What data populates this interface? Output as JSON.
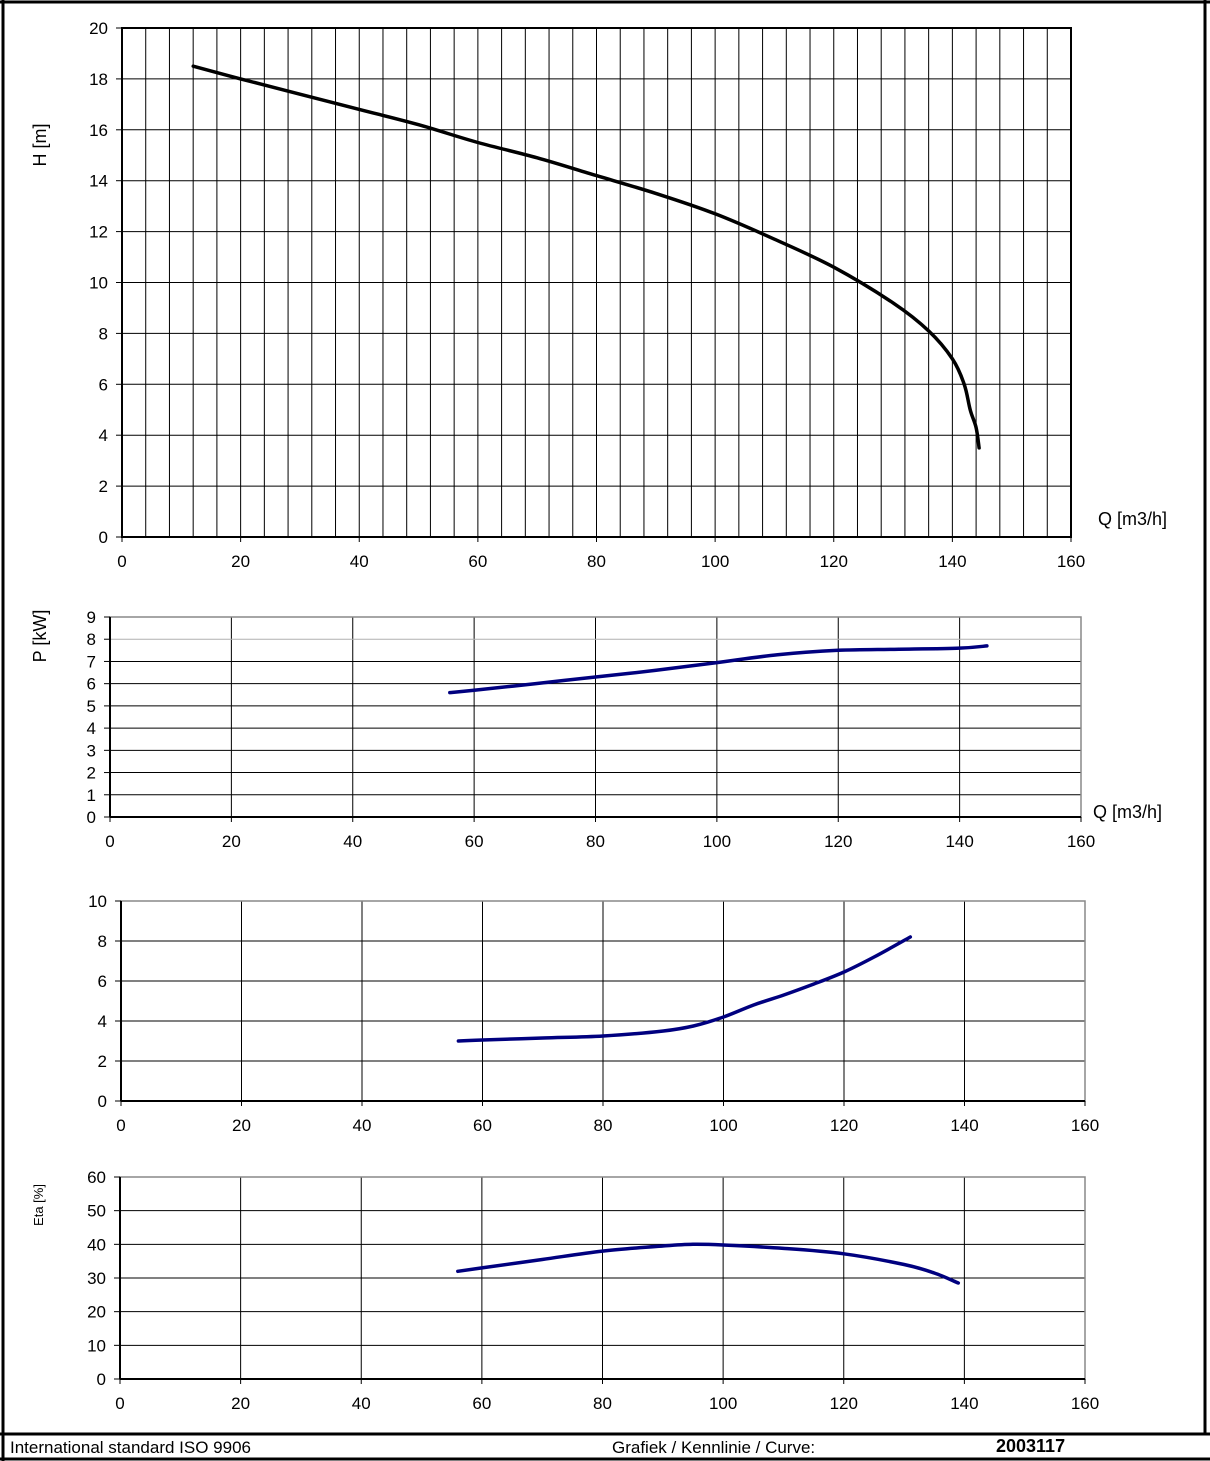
{
  "footer": {
    "standard": "International standard ISO 9906",
    "curve_label": "Grafiek / Kennlinie / Curve:",
    "curve_number": "2003117"
  },
  "colors": {
    "head": "#000000",
    "series": "#00007f",
    "grid": "#000000",
    "frame": "#000000"
  },
  "chart_data": [
    {
      "type": "line",
      "id": "head",
      "ylabel": "H [m]",
      "xlabel": "Q [m3/h]",
      "xlim": [
        0,
        160
      ],
      "ylim": [
        0,
        20
      ],
      "xticks": [
        0,
        20,
        40,
        60,
        80,
        100,
        120,
        140,
        160
      ],
      "yticks": [
        0,
        2,
        4,
        6,
        8,
        10,
        12,
        14,
        16,
        18,
        20
      ],
      "grid_x_step": 4,
      "grid_y_step": 2,
      "series": [
        {
          "x": [
            12,
            20,
            30,
            40,
            50,
            60,
            70,
            80,
            90,
            100,
            110,
            120,
            130,
            136,
            140,
            142,
            143,
            144,
            144.5
          ],
          "y": [
            18.5,
            18.0,
            17.4,
            16.8,
            16.2,
            15.5,
            14.9,
            14.2,
            13.5,
            12.7,
            11.7,
            10.6,
            9.2,
            8.1,
            7.0,
            6.0,
            5.0,
            4.3,
            3.5
          ]
        }
      ]
    },
    {
      "type": "line",
      "id": "power",
      "ylabel": "P [kW]",
      "xlabel": "Q [m3/h]",
      "xlim": [
        0,
        160
      ],
      "ylim": [
        0,
        9
      ],
      "xticks": [
        0,
        20,
        40,
        60,
        80,
        100,
        120,
        140,
        160
      ],
      "yticks": [
        0,
        1,
        2,
        3,
        4,
        5,
        6,
        7,
        8,
        9
      ],
      "grid_x_step": 20,
      "grid_y_step": 1,
      "series": [
        {
          "x": [
            56,
            60,
            70,
            80,
            90,
            100,
            110,
            120,
            130,
            140,
            144.5
          ],
          "y": [
            5.6,
            5.7,
            6.0,
            6.3,
            6.6,
            6.95,
            7.3,
            7.5,
            7.55,
            7.6,
            7.7
          ]
        }
      ]
    },
    {
      "type": "line",
      "id": "third",
      "ylabel": "",
      "xlabel": "",
      "xlim": [
        0,
        160
      ],
      "ylim": [
        0,
        10
      ],
      "xticks": [
        0,
        20,
        40,
        60,
        80,
        100,
        120,
        140,
        160
      ],
      "yticks": [
        0,
        2,
        4,
        6,
        8,
        10
      ],
      "grid_x_step": 20,
      "grid_y_step": 2,
      "series": [
        {
          "x": [
            56,
            60,
            70,
            80,
            90,
            95,
            100,
            105,
            110,
            115,
            120,
            125,
            131
          ],
          "y": [
            3.0,
            3.05,
            3.15,
            3.25,
            3.5,
            3.75,
            4.2,
            4.8,
            5.3,
            5.85,
            6.45,
            7.2,
            8.2
          ]
        }
      ]
    },
    {
      "type": "line",
      "id": "eta",
      "ylabel": "Eta [%]",
      "xlabel": "",
      "xlim": [
        0,
        160
      ],
      "ylim": [
        0,
        60
      ],
      "xticks": [
        0,
        20,
        40,
        60,
        80,
        100,
        120,
        140,
        160
      ],
      "yticks": [
        0,
        10,
        20,
        30,
        40,
        50,
        60
      ],
      "grid_x_step": 20,
      "grid_y_step": 10,
      "series": [
        {
          "x": [
            56,
            60,
            70,
            80,
            90,
            95,
            100,
            110,
            120,
            130,
            135,
            139
          ],
          "y": [
            32.0,
            33.0,
            35.5,
            38.0,
            39.5,
            40.0,
            39.8,
            38.8,
            37.2,
            34.0,
            31.5,
            28.5
          ]
        }
      ]
    }
  ]
}
